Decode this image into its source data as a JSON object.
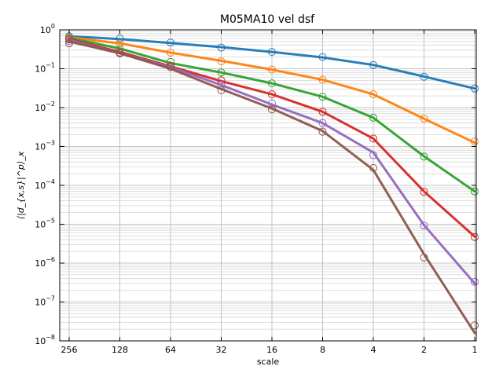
{
  "chart_data": {
    "type": "line",
    "title": "M05MA10 vel dsf",
    "xlabel": "scale",
    "ylabel": "⟨|d_{x,s}|^p⟩_x",
    "x_scale": "log2",
    "x_reversed": true,
    "y_scale": "log10",
    "xlim": [
      1,
      256
    ],
    "ylim": [
      1e-08,
      1.0
    ],
    "grid": true,
    "x_ticks": [
      256,
      128,
      64,
      32,
      16,
      8,
      4,
      2,
      1
    ],
    "x_tick_labels": [
      "256",
      "128",
      "64",
      "32",
      "16",
      "8",
      "4",
      "2",
      "1"
    ],
    "y_ticks": [
      1e-08,
      1e-07,
      1e-06,
      1e-05,
      0.0001,
      0.001,
      0.01,
      0.1,
      1
    ],
    "y_tick_labels": [
      {
        "base": "10",
        "exp": "−8"
      },
      {
        "base": "10",
        "exp": "−7"
      },
      {
        "base": "10",
        "exp": "−6"
      },
      {
        "base": "10",
        "exp": "−5"
      },
      {
        "base": "10",
        "exp": "−4"
      },
      {
        "base": "10",
        "exp": "−3"
      },
      {
        "base": "10",
        "exp": "−2"
      },
      {
        "base": "10",
        "exp": "−1"
      },
      {
        "base": "10",
        "exp": "0"
      }
    ],
    "series": [
      {
        "color": "#1f77b4",
        "markers": {
          "x": [
            256,
            128,
            64,
            32,
            16,
            8,
            4,
            2,
            1
          ],
          "y": [
            0.68,
            0.6,
            0.47,
            0.35,
            0.27,
            0.2,
            0.125,
            0.062,
            0.031
          ]
        },
        "curve": {
          "x": [
            256,
            128,
            64,
            32,
            16,
            8,
            4,
            2,
            1
          ],
          "y": [
            0.68,
            0.58,
            0.46,
            0.36,
            0.27,
            0.195,
            0.125,
            0.063,
            0.031
          ]
        }
      },
      {
        "color": "#ff7f0e",
        "markers": {
          "x": [
            256,
            128,
            64,
            32,
            16,
            8,
            4,
            2,
            1
          ],
          "y": [
            0.64,
            0.44,
            0.26,
            0.155,
            0.095,
            0.052,
            0.022,
            0.0052,
            0.00135
          ]
        },
        "curve": {
          "x": [
            256,
            128,
            64,
            32,
            16,
            8,
            4,
            2,
            1
          ],
          "y": [
            0.64,
            0.45,
            0.26,
            0.16,
            0.095,
            0.052,
            0.022,
            0.0052,
            0.00125
          ]
        }
      },
      {
        "color": "#2ca02c",
        "markers": {
          "x": [
            256,
            128,
            64,
            32,
            16,
            8,
            4,
            2,
            1
          ],
          "y": [
            0.6,
            0.32,
            0.15,
            0.08,
            0.042,
            0.019,
            0.0055,
            0.00055,
            7e-05
          ]
        },
        "curve": {
          "x": [
            256,
            128,
            64,
            32,
            16,
            8,
            4,
            2,
            1
          ],
          "y": [
            0.62,
            0.33,
            0.14,
            0.08,
            0.042,
            0.019,
            0.0055,
            0.00056,
            7e-05
          ]
        }
      },
      {
        "color": "#d62728",
        "markers": {
          "x": [
            256,
            128,
            64,
            32,
            16,
            8,
            4,
            2,
            1
          ],
          "y": [
            0.57,
            0.26,
            0.12,
            0.05,
            0.022,
            0.0078,
            0.0016,
            6.8e-05,
            4.7e-06
          ]
        },
        "curve": {
          "x": [
            256,
            128,
            64,
            32,
            16,
            8,
            4,
            2,
            1
          ],
          "y": [
            0.58,
            0.27,
            0.115,
            0.048,
            0.022,
            0.0078,
            0.0016,
            7e-05,
            4.8e-06
          ]
        }
      },
      {
        "color": "#9467bd",
        "markers": {
          "x": [
            256,
            128,
            64,
            32,
            16,
            8,
            4,
            2,
            1
          ],
          "y": [
            0.52,
            0.25,
            0.11,
            0.038,
            0.013,
            0.004,
            0.0006,
            9.2e-06,
            3.3e-07
          ]
        },
        "curve": {
          "x": [
            256,
            128,
            64,
            32,
            16,
            8,
            4,
            2,
            1
          ],
          "y": [
            0.55,
            0.25,
            0.11,
            0.038,
            0.012,
            0.004,
            0.0007,
            9.5e-06,
            3e-07
          ]
        }
      },
      {
        "color": "#8c564b",
        "markers": {
          "x": [
            256,
            128,
            64,
            32,
            16,
            8,
            4,
            2,
            1
          ],
          "y": [
            0.45,
            0.25,
            0.11,
            0.028,
            0.009,
            0.0024,
            0.00028,
            1.4e-06,
            2.5e-08
          ]
        },
        "curve": {
          "x": [
            256,
            128,
            64,
            32,
            16,
            8,
            4,
            2,
            1
          ],
          "y": [
            0.5,
            0.25,
            0.1,
            0.03,
            0.0095,
            0.0025,
            0.00025,
            1.7e-06,
            1.6e-08
          ]
        }
      }
    ]
  }
}
